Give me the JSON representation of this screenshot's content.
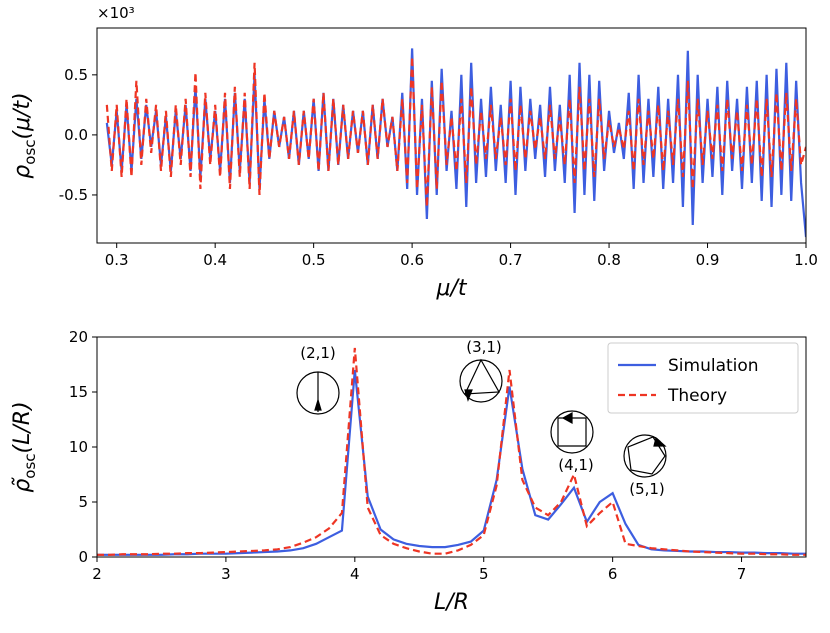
{
  "chart_data": [
    {
      "type": "line",
      "y_offset_label": "×10³",
      "x_label": "μ/t",
      "y_label": [
        "ρ",
        "osc",
        "(μ/t)"
      ],
      "xlim": [
        0.28,
        1.0
      ],
      "ylim": [
        -0.9,
        0.89
      ],
      "xticks": [
        0.3,
        0.4,
        0.5,
        0.6,
        0.7,
        0.8,
        0.9,
        {
          "value": 1.0,
          "label": "1.0"
        }
      ],
      "yticks": [
        -0.5,
        {
          "value": 0,
          "label": "0.0"
        },
        0.5
      ],
      "x": [
        0.29,
        0.295,
        0.3,
        0.305,
        0.31,
        0.315,
        0.32,
        0.325,
        0.33,
        0.335,
        0.34,
        0.345,
        0.35,
        0.355,
        0.36,
        0.365,
        0.37,
        0.375,
        0.38,
        0.385,
        0.39,
        0.395,
        0.4,
        0.405,
        0.41,
        0.415,
        0.42,
        0.425,
        0.43,
        0.435,
        0.44,
        0.445,
        0.45,
        0.455,
        0.46,
        0.465,
        0.47,
        0.475,
        0.48,
        0.485,
        0.49,
        0.495,
        0.5,
        0.505,
        0.51,
        0.515,
        0.52,
        0.525,
        0.53,
        0.535,
        0.54,
        0.545,
        0.55,
        0.555,
        0.56,
        0.565,
        0.57,
        0.575,
        0.58,
        0.585,
        0.59,
        0.595,
        0.6,
        0.605,
        0.61,
        0.615,
        0.62,
        0.625,
        0.63,
        0.635,
        0.64,
        0.645,
        0.65,
        0.655,
        0.66,
        0.665,
        0.67,
        0.675,
        0.68,
        0.685,
        0.69,
        0.695,
        0.7,
        0.705,
        0.71,
        0.715,
        0.72,
        0.725,
        0.73,
        0.735,
        0.74,
        0.745,
        0.75,
        0.755,
        0.76,
        0.765,
        0.77,
        0.775,
        0.78,
        0.785,
        0.79,
        0.795,
        0.8,
        0.805,
        0.81,
        0.815,
        0.82,
        0.825,
        0.83,
        0.835,
        0.84,
        0.845,
        0.85,
        0.855,
        0.86,
        0.865,
        0.87,
        0.875,
        0.88,
        0.885,
        0.89,
        0.895,
        0.9,
        0.905,
        0.91,
        0.915,
        0.92,
        0.925,
        0.93,
        0.935,
        0.94,
        0.945,
        0.95,
        0.955,
        0.96,
        0.965,
        0.97,
        0.975,
        0.98,
        0.985,
        0.99,
        0.995,
        1.0
      ],
      "series": [
        {
          "color": "#3d5ee0",
          "dashed": false,
          "values": [
            0.1,
            -0.25,
            0.2,
            -0.3,
            0.25,
            -0.3,
            0.3,
            -0.2,
            0.25,
            -0.1,
            0.2,
            -0.25,
            0.15,
            -0.3,
            0.2,
            -0.2,
            0.25,
            -0.3,
            0.4,
            -0.35,
            0.3,
            -0.2,
            0.2,
            -0.3,
            0.3,
            -0.4,
            0.35,
            -0.3,
            0.3,
            -0.4,
            0.5,
            -0.45,
            0.3,
            -0.2,
            0.2,
            -0.1,
            0.15,
            -0.2,
            0.2,
            -0.25,
            0.2,
            -0.2,
            0.3,
            -0.3,
            0.35,
            -0.3,
            0.3,
            -0.25,
            0.25,
            -0.2,
            0.2,
            -0.15,
            0.2,
            -0.25,
            0.25,
            -0.2,
            0.3,
            -0.1,
            0.15,
            -0.3,
            0.35,
            -0.45,
            0.72,
            -0.5,
            0.3,
            -0.7,
            0.45,
            -0.5,
            0.55,
            -0.3,
            0.2,
            -0.45,
            0.5,
            -0.6,
            0.6,
            -0.4,
            0.3,
            -0.35,
            0.4,
            -0.3,
            0.25,
            -0.4,
            0.45,
            -0.5,
            0.4,
            -0.3,
            0.3,
            -0.2,
            0.25,
            -0.35,
            0.4,
            -0.3,
            0.25,
            -0.4,
            0.5,
            -0.65,
            0.6,
            -0.5,
            0.5,
            -0.55,
            0.45,
            -0.3,
            0.2,
            -0.15,
            0.1,
            -0.2,
            0.35,
            -0.45,
            0.5,
            -0.4,
            0.3,
            -0.35,
            0.4,
            -0.45,
            0.3,
            -0.4,
            0.5,
            -0.6,
            0.7,
            -0.75,
            0.5,
            -0.4,
            0.3,
            -0.35,
            0.4,
            -0.5,
            0.45,
            -0.3,
            0.3,
            -0.45,
            0.4,
            -0.4,
            0.45,
            -0.55,
            0.5,
            -0.6,
            0.55,
            -0.5,
            0.6,
            -0.55,
            0.45,
            -0.4,
            -0.85
          ]
        },
        {
          "color": "#ee3524",
          "dashed": true,
          "values": [
            0.25,
            -0.3,
            0.25,
            -0.35,
            0.3,
            -0.35,
            0.45,
            -0.25,
            0.3,
            -0.15,
            0.25,
            -0.3,
            0.2,
            -0.35,
            0.25,
            -0.25,
            0.3,
            -0.35,
            0.52,
            -0.45,
            0.35,
            -0.25,
            0.25,
            -0.35,
            0.35,
            -0.45,
            0.4,
            -0.35,
            0.35,
            -0.45,
            0.6,
            -0.5,
            0.35,
            -0.2,
            0.2,
            -0.1,
            0.15,
            -0.2,
            0.2,
            -0.25,
            0.2,
            -0.2,
            0.3,
            -0.3,
            0.35,
            -0.3,
            0.3,
            -0.25,
            0.25,
            -0.2,
            0.2,
            -0.15,
            0.2,
            -0.25,
            0.25,
            -0.2,
            0.3,
            -0.1,
            0.15,
            -0.3,
            0.3,
            -0.4,
            0.65,
            -0.45,
            0.25,
            -0.6,
            0.4,
            -0.45,
            0.45,
            -0.25,
            0.15,
            -0.3,
            0.3,
            -0.4,
            0.4,
            -0.25,
            0.2,
            -0.2,
            0.25,
            -0.2,
            0.15,
            -0.25,
            0.3,
            -0.3,
            0.25,
            -0.2,
            0.2,
            -0.12,
            0.15,
            -0.2,
            0.25,
            -0.2,
            0.15,
            -0.25,
            0.3,
            -0.4,
            0.4,
            -0.3,
            0.3,
            -0.35,
            0.3,
            -0.2,
            0.12,
            -0.1,
            0.06,
            -0.12,
            0.2,
            -0.3,
            0.3,
            -0.25,
            0.2,
            -0.2,
            0.25,
            -0.3,
            0.2,
            -0.25,
            0.3,
            -0.35,
            0.45,
            -0.45,
            0.3,
            -0.25,
            0.2,
            -0.2,
            0.25,
            -0.3,
            0.3,
            -0.2,
            0.2,
            -0.3,
            0.25,
            -0.25,
            0.3,
            -0.35,
            0.3,
            -0.35,
            0.35,
            -0.3,
            0.35,
            -0.3,
            0.3,
            -0.25,
            -0.1
          ]
        }
      ]
    },
    {
      "type": "line",
      "x_label": "L/R",
      "y_label": [
        "ρ̃",
        "osc",
        "(L/R)"
      ],
      "xlim": [
        2,
        7.5
      ],
      "ylim": [
        0,
        20
      ],
      "xticks": [
        2,
        3,
        4,
        5,
        6,
        7
      ],
      "yticks": [
        0,
        5,
        10,
        15,
        20
      ],
      "legend": "upper right",
      "annotations": [
        "(2,1)",
        "(3,1)",
        "(4,1)",
        "(5,1)"
      ],
      "x": [
        2.0,
        2.1,
        2.2,
        2.3,
        2.4,
        2.5,
        2.6,
        2.7,
        2.8,
        2.9,
        3.0,
        3.1,
        3.2,
        3.3,
        3.4,
        3.5,
        3.6,
        3.7,
        3.8,
        3.9,
        4.0,
        4.1,
        4.2,
        4.3,
        4.4,
        4.5,
        4.6,
        4.7,
        4.8,
        4.9,
        5.0,
        5.1,
        5.2,
        5.3,
        5.4,
        5.5,
        5.6,
        5.7,
        5.8,
        5.9,
        6.0,
        6.1,
        6.2,
        6.3,
        6.4,
        6.5,
        6.6,
        6.7,
        6.8,
        6.9,
        7.0,
        7.1,
        7.2,
        7.3,
        7.4,
        7.5
      ],
      "series": [
        {
          "name": "Simulation",
          "color": "#3d5ee0",
          "dashed": false,
          "values": [
            0.2,
            0.2,
            0.2,
            0.2,
            0.2,
            0.2,
            0.25,
            0.25,
            0.3,
            0.3,
            0.3,
            0.35,
            0.4,
            0.45,
            0.5,
            0.6,
            0.8,
            1.2,
            1.8,
            2.4,
            17,
            5.5,
            2.5,
            1.6,
            1.2,
            1.0,
            0.9,
            0.9,
            1.1,
            1.4,
            2.4,
            7,
            15.5,
            8,
            3.8,
            3.4,
            4.8,
            6.3,
            3.2,
            5,
            5.8,
            3,
            1.1,
            0.7,
            0.6,
            0.55,
            0.5,
            0.5,
            0.45,
            0.45,
            0.4,
            0.4,
            0.35,
            0.35,
            0.3,
            0.3
          ]
        },
        {
          "name": "Theory",
          "color": "#ee3524",
          "dashed": true,
          "values": [
            0.2,
            0.2,
            0.25,
            0.25,
            0.25,
            0.3,
            0.3,
            0.35,
            0.35,
            0.4,
            0.45,
            0.5,
            0.55,
            0.6,
            0.7,
            0.9,
            1.3,
            1.8,
            2.6,
            4,
            19,
            4.5,
            2,
            1.2,
            0.8,
            0.5,
            0.3,
            0.3,
            0.6,
            1.1,
            2,
            6.5,
            17,
            7,
            4.5,
            3.8,
            5,
            7.5,
            2.8,
            4,
            5,
            1.2,
            1,
            0.8,
            0.7,
            0.6,
            0.5,
            0.45,
            0.4,
            0.35,
            0.3,
            0.3,
            0.25,
            0.25,
            0.2,
            0.2
          ]
        }
      ]
    }
  ]
}
